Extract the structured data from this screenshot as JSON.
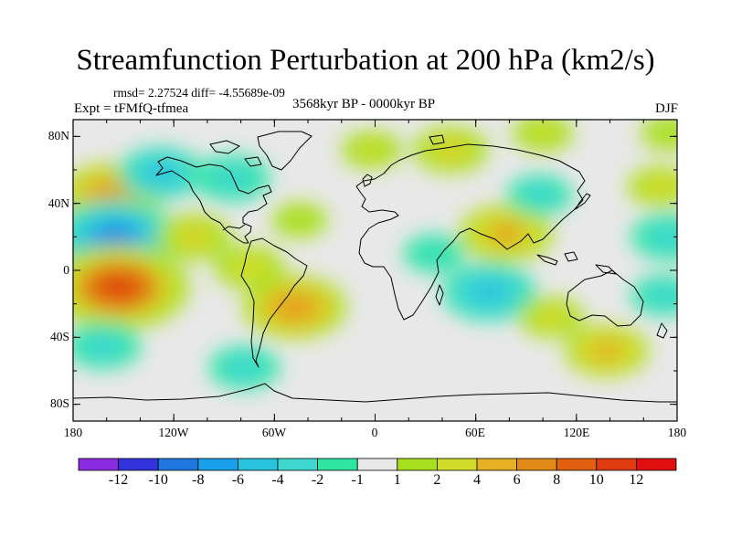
{
  "title": "Streamfunction Perturbation at 200 hPa (km2/s)",
  "subtitle": "rmsd= 2.27524 diff= -4.55689e-09",
  "experiment": "Expt = tFMfQ-tfmea",
  "period": "3568kyr BP - 0000kyr BP",
  "season": "DJF",
  "lat_labels": [
    "80N",
    "40N",
    "0",
    "40S",
    "80S"
  ],
  "lon_labels": [
    "180",
    "120W",
    "60W",
    "0",
    "60E",
    "120E",
    "180"
  ],
  "chart_data": {
    "type": "heatmap",
    "variable": "Streamfunction perturbation",
    "units": "km2/s",
    "level": "200 hPa",
    "x_range": [
      -180,
      180
    ],
    "y_range": [
      -90,
      90
    ],
    "colorbar": {
      "tick_labels": [
        "-12",
        "-10",
        "-8",
        "-6",
        "-4",
        "-2",
        "-1",
        "1",
        "2",
        "4",
        "6",
        "8",
        "10",
        "12"
      ],
      "colors": [
        "#8a2be2",
        "#3333dd",
        "#1e78e0",
        "#1aa0e8",
        "#29c3e0",
        "#3fd8d0",
        "#2ee6a2",
        "#e8e8e8",
        "#a8e020",
        "#d2dc2a",
        "#e6b020",
        "#e08a18",
        "#e06010",
        "#e03a10",
        "#e01010"
      ]
    },
    "anomalies": [
      {
        "lon": -157,
        "lat": 45,
        "value": 7
      },
      {
        "lon": -155,
        "lat": 20,
        "value": -9
      },
      {
        "lon": -153,
        "lat": -10,
        "value": 11
      },
      {
        "lon": -162,
        "lat": -45,
        "value": -4
      },
      {
        "lon": -128,
        "lat": 58,
        "value": -5
      },
      {
        "lon": -108,
        "lat": 20,
        "value": 4
      },
      {
        "lon": -85,
        "lat": 55,
        "value": -4
      },
      {
        "lon": -75,
        "lat": 2,
        "value": 3.5
      },
      {
        "lon": -48,
        "lat": -22,
        "value": 7
      },
      {
        "lon": -78,
        "lat": -58,
        "value": -3.5
      },
      {
        "lon": -2,
        "lat": 72,
        "value": 2.5
      },
      {
        "lon": -45,
        "lat": 30,
        "value": 2
      },
      {
        "lon": 45,
        "lat": 72,
        "value": 4
      },
      {
        "lon": 100,
        "lat": 82,
        "value": 2.5
      },
      {
        "lon": 78,
        "lat": 22,
        "value": 6
      },
      {
        "lon": 98,
        "lat": 45,
        "value": -3
      },
      {
        "lon": 68,
        "lat": -13,
        "value": -6
      },
      {
        "lon": 35,
        "lat": 10,
        "value": -2.5
      },
      {
        "lon": 105,
        "lat": -28,
        "value": 3
      },
      {
        "lon": 138,
        "lat": -48,
        "value": 5
      },
      {
        "lon": 170,
        "lat": 50,
        "value": 3
      },
      {
        "lon": 175,
        "lat": 20,
        "value": -4
      },
      {
        "lon": 172,
        "lat": -15,
        "value": -3
      },
      {
        "lon": 175,
        "lat": 82,
        "value": 2
      }
    ]
  }
}
